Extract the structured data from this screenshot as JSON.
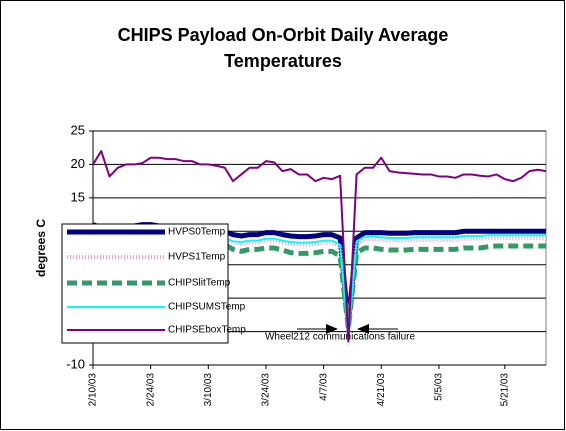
{
  "chart_data": {
    "type": "line",
    "title": "CHIPS Payload On-Orbit Daily Average Temperatures",
    "y_label": "degrees C",
    "annotation": "Wheel212 communications failure",
    "categories": [
      "2/10/03",
      null,
      null,
      null,
      null,
      null,
      null,
      "2/24/03",
      null,
      null,
      null,
      null,
      null,
      null,
      "3/10/03",
      null,
      null,
      null,
      null,
      null,
      null,
      "3/24/03",
      null,
      null,
      null,
      null,
      null,
      null,
      "4/7/03",
      null,
      null,
      null,
      null,
      null,
      null,
      "4/21/03",
      null,
      null,
      null,
      null,
      null,
      null,
      "5/5/03",
      null,
      null,
      null,
      null,
      null,
      null,
      null,
      "5/21/03",
      null,
      null,
      null,
      null,
      null
    ],
    "ylim": [
      -10,
      25
    ],
    "yticks": [
      -10,
      -5,
      0,
      5,
      10,
      15,
      20,
      25
    ],
    "grid": true,
    "legend": "left",
    "series": [
      {
        "name": "HVPS0Temp",
        "color": "#000080",
        "width": 5,
        "dash": "none",
        "values": [
          11,
          10.5,
          10.8,
          10.8,
          10.7,
          10.8,
          11,
          11,
          10.8,
          10.8,
          10.5,
          10.5,
          10.3,
          10.2,
          10,
          10,
          10,
          9.5,
          9.3,
          9.5,
          9.5,
          9.8,
          9.8,
          9.5,
          9.3,
          9.2,
          9.2,
          9.3,
          9.5,
          9.5,
          9,
          -4,
          9,
          9.8,
          9.8,
          9.8,
          9.7,
          9.7,
          9.7,
          9.8,
          9.8,
          9.8,
          9.8,
          9.8,
          9.8,
          10,
          10,
          10,
          10,
          10,
          10,
          10,
          10,
          10,
          10,
          10
        ]
      },
      {
        "name": "HVPS1Temp",
        "color": "#ff99cc",
        "width": 4,
        "dash": "1 2",
        "values": [
          10,
          9.5,
          9.8,
          9.8,
          9.7,
          9.8,
          10,
          10,
          9.8,
          9.8,
          9.5,
          9.3,
          9.1,
          9,
          8.8,
          8.8,
          8.8,
          8.3,
          8.1,
          8.3,
          8.3,
          8.6,
          8.6,
          8.3,
          8.1,
          8,
          8,
          8.1,
          8.3,
          8.3,
          7.8,
          -5,
          8,
          8.8,
          8.8,
          8.7,
          8.6,
          8.6,
          8.6,
          8.7,
          8.7,
          8.7,
          8.7,
          8.7,
          8.7,
          8.9,
          8.9,
          8.9,
          9,
          9,
          9,
          9,
          9,
          9,
          9,
          9
        ]
      },
      {
        "name": "CHIPSlitTemp",
        "color": "#339966",
        "width": 5,
        "dash": "10 5",
        "values": [
          9.5,
          9,
          9.3,
          9.3,
          9.2,
          9.3,
          9.5,
          9.5,
          9.3,
          9.2,
          9,
          8.8,
          8.5,
          8.3,
          8,
          8,
          8,
          7.3,
          7,
          7.3,
          7.3,
          7.5,
          7.5,
          7.2,
          6.8,
          6.7,
          6.7,
          6.8,
          7,
          7,
          6.3,
          -4.5,
          6.8,
          7.5,
          7.5,
          7.3,
          7.2,
          7.2,
          7.2,
          7.3,
          7.3,
          7.3,
          7.3,
          7.3,
          7.3,
          7.5,
          7.5,
          7.5,
          7.7,
          7.8,
          7.8,
          7.8,
          7.8,
          7.8,
          7.8,
          7.8
        ]
      },
      {
        "name": "CHIPSUMSTemp",
        "color": "#00ffff",
        "width": 2,
        "dash": "none",
        "values": [
          10.5,
          10.3,
          10.3,
          10.2,
          10,
          10,
          10.2,
          10.2,
          10,
          10,
          9.8,
          9.6,
          9.5,
          9.3,
          9.2,
          9.2,
          9,
          8.5,
          8.4,
          8.6,
          8.6,
          8.9,
          8.9,
          8.6,
          8.4,
          8.3,
          8.3,
          8.4,
          8.6,
          8.6,
          8,
          -6,
          8.5,
          9.2,
          9.2,
          9.1,
          9,
          9,
          9,
          9.1,
          9.1,
          9.1,
          9.1,
          9.1,
          9.1,
          9.3,
          9.3,
          9.3,
          9.4,
          9.4,
          9.4,
          9.4,
          9.4,
          9.4,
          9.4,
          9.4
        ]
      },
      {
        "name": "CHIPSEboxTemp",
        "color": "#800080",
        "width": 2,
        "dash": "none",
        "values": [
          20,
          22,
          18.2,
          19.5,
          20,
          20,
          20.2,
          21,
          21,
          20.8,
          20.8,
          20.5,
          20.5,
          20,
          20,
          19.8,
          19.5,
          17.5,
          18.5,
          19.5,
          19.5,
          20.5,
          20.3,
          19,
          19.3,
          18.5,
          18.5,
          17.5,
          18,
          17.8,
          18.3,
          -6.5,
          18.5,
          19.5,
          19.5,
          21,
          19,
          18.8,
          18.7,
          18.6,
          18.5,
          18.5,
          18.2,
          18.2,
          18,
          18.5,
          18.5,
          18.3,
          18.2,
          18.5,
          17.8,
          17.5,
          18,
          19,
          19.2,
          19
        ]
      }
    ]
  }
}
